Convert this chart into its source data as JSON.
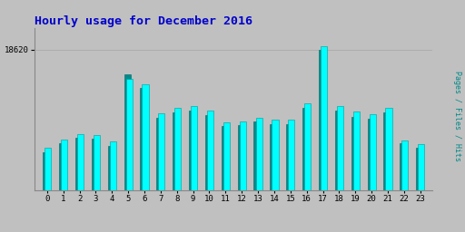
{
  "title": "Hourly usage for December 2016",
  "hours": [
    0,
    1,
    2,
    3,
    4,
    5,
    6,
    7,
    8,
    9,
    10,
    11,
    12,
    13,
    14,
    15,
    16,
    17,
    18,
    19,
    20,
    21,
    22,
    23
  ],
  "hits": [
    5600,
    6700,
    7400,
    7300,
    6500,
    14800,
    14000,
    10200,
    10900,
    11100,
    10500,
    9000,
    9100,
    9600,
    9300,
    9400,
    11500,
    19100,
    11100,
    10400,
    10100,
    10900,
    6600,
    6100
  ],
  "pages": [
    5000,
    6200,
    6900,
    6800,
    5900,
    15300,
    13500,
    9600,
    10300,
    10600,
    10000,
    8500,
    8600,
    9100,
    8800,
    8800,
    10900,
    18620,
    10500,
    9700,
    9500,
    10300,
    6200,
    5600
  ],
  "bar_color_hits": "#00FFFF",
  "bar_color_pages": "#008B8B",
  "bar_edge_hits": "#009999",
  "bar_edge_pages": "#006666",
  "background_color": "#C0C0C0",
  "title_color": "#0000CC",
  "ylabel_text": "Pages / Files / Hits",
  "ylabel_colors": [
    "#006600",
    "#0000FF",
    "#008888"
  ],
  "ytick_val": 18620,
  "bar_width": 0.38
}
